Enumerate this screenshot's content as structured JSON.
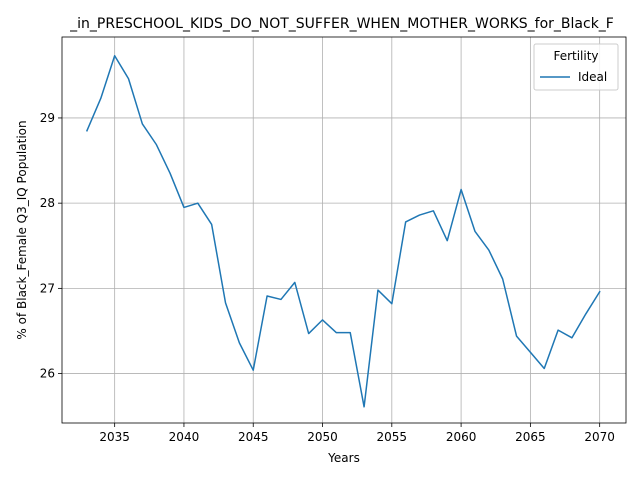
{
  "chart_data": {
    "type": "line",
    "title": "_in_PRESCHOOL_KIDS_DO_NOT_SUFFER_WHEN_MOTHER_WORKS_for_Black_F",
    "xlabel": "Years",
    "ylabel": "% of Black_Female Q3_IQ Population",
    "xlim": [
      2031.2,
      2071.9
    ],
    "ylim": [
      25.42,
      29.95
    ],
    "x_ticks": [
      2035,
      2040,
      2045,
      2050,
      2055,
      2060,
      2065,
      2070
    ],
    "y_ticks": [
      26,
      27,
      28,
      29
    ],
    "grid": true,
    "legend": {
      "title": "Fertility",
      "placement": "top-right"
    },
    "x": [
      2033,
      2034,
      2035,
      2036,
      2037,
      2038,
      2039,
      2040,
      2041,
      2042,
      2043,
      2044,
      2045,
      2046,
      2047,
      2048,
      2049,
      2050,
      2051,
      2052,
      2053,
      2054,
      2055,
      2056,
      2057,
      2058,
      2059,
      2060,
      2061,
      2062,
      2063,
      2064,
      2065,
      2066,
      2067,
      2068,
      2069,
      2070
    ],
    "series": [
      {
        "name": "Ideal",
        "color": "#1f77b4",
        "values": [
          28.85,
          29.23,
          29.73,
          29.46,
          28.93,
          28.69,
          28.35,
          27.95,
          28.0,
          27.75,
          26.83,
          26.36,
          26.04,
          26.91,
          26.87,
          27.07,
          26.47,
          26.63,
          26.48,
          26.48,
          25.61,
          26.98,
          26.82,
          27.78,
          27.86,
          27.91,
          27.56,
          28.16,
          27.67,
          27.45,
          27.11,
          26.44,
          26.25,
          26.06,
          26.51,
          26.42,
          26.7,
          26.96
        ]
      }
    ]
  }
}
